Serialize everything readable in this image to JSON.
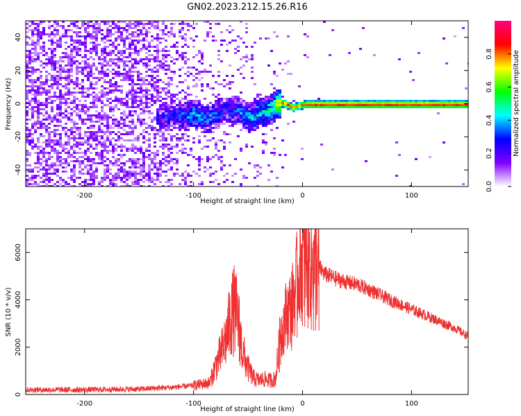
{
  "title": "GN02.2023.212.15.26.R16",
  "chart_data": [
    {
      "type": "heatmap",
      "xlabel": "Height of straight line (km)",
      "ylabel": "Frequency (Hz)",
      "xlim": [
        -254,
        152
      ],
      "ylim": [
        -50,
        50
      ],
      "x_ticks": [
        "-200",
        "-100",
        "0",
        "100"
      ],
      "y_ticks": [
        "-40",
        "-20",
        "0",
        "20",
        "40"
      ],
      "x_tick_values": [
        -200,
        -100,
        0,
        100
      ],
      "y_tick_values": [
        -40,
        -20,
        0,
        20,
        40
      ],
      "colorbar": {
        "label": "Normalized spectral amplitude",
        "range": [
          0,
          1
        ],
        "ticks": [
          "0.0",
          "0.2",
          "0.4",
          "0.6",
          "0.8"
        ],
        "tick_values": [
          0,
          0.2,
          0.4,
          0.6,
          0.8
        ],
        "colors": [
          "#ffffff",
          "#8000ff",
          "#0000ff",
          "#00ffff",
          "#00ff00",
          "#ffff00",
          "#ff0000",
          "#ff0080"
        ]
      },
      "signal_trace": [
        [
          -130,
          -8,
          0.35
        ],
        [
          -120,
          -6,
          0.4
        ],
        [
          -110,
          -7,
          0.45
        ],
        [
          -100,
          -6,
          0.5
        ],
        [
          -90,
          -9,
          0.45
        ],
        [
          -80,
          -6,
          0.45
        ],
        [
          -70,
          -3,
          0.4
        ],
        [
          -60,
          -4,
          0.45
        ],
        [
          -50,
          -8,
          0.5
        ],
        [
          -40,
          -5,
          0.55
        ],
        [
          -30,
          -3,
          0.6
        ],
        [
          -25,
          0,
          0.8
        ],
        [
          -20,
          1,
          0.85
        ],
        [
          -15,
          0,
          0.9
        ],
        [
          -10,
          -2,
          0.85
        ],
        [
          -5,
          -1,
          0.8
        ],
        [
          0,
          0,
          0.85
        ],
        [
          10,
          0,
          0.9
        ],
        [
          50,
          0,
          0.9
        ],
        [
          100,
          0,
          0.9
        ],
        [
          152,
          0,
          0.9
        ]
      ]
    },
    {
      "type": "line",
      "xlabel": "Height of straight line (km)",
      "ylabel": "SNR (10 * v/v)",
      "xlim": [
        -254,
        152
      ],
      "ylim": [
        0,
        7000
      ],
      "x_ticks": [
        "-200",
        "-100",
        "0",
        "100"
      ],
      "y_ticks": [
        "0",
        "2000",
        "4000",
        "6000"
      ],
      "x_tick_values": [
        -200,
        -100,
        0,
        100
      ],
      "y_tick_values": [
        0,
        2000,
        4000,
        6000
      ],
      "color": "#ee3030",
      "envelope": {
        "x": [
          -254,
          -200,
          -150,
          -120,
          -100,
          -85,
          -80,
          -75,
          -70,
          -65,
          -62,
          -60,
          -58,
          -55,
          -50,
          -45,
          -40,
          -35,
          -30,
          -25,
          -20,
          -15,
          -10,
          -5,
          0,
          5,
          10,
          15,
          20,
          30,
          40,
          50,
          60,
          80,
          100,
          120,
          140,
          152
        ],
        "y": [
          200,
          200,
          230,
          300,
          380,
          500,
          1200,
          1700,
          2400,
          3400,
          3600,
          3200,
          2800,
          1800,
          1100,
          700,
          600,
          650,
          600,
          650,
          2500,
          3400,
          3700,
          4800,
          5800,
          5600,
          5400,
          5400,
          5100,
          4900,
          4750,
          4650,
          4450,
          4000,
          3600,
          3200,
          2800,
          2450
        ]
      },
      "spikes": [
        [
          -65,
          4700
        ],
        [
          -62,
          4200
        ],
        [
          -58,
          4000
        ],
        [
          -20,
          3200
        ],
        [
          -10,
          5200
        ],
        [
          -5,
          5700
        ],
        [
          0,
          6900
        ],
        [
          2,
          6500
        ],
        [
          5,
          6300
        ],
        [
          8,
          6600
        ],
        [
          10,
          6500
        ],
        [
          12,
          6600
        ],
        [
          15,
          6000
        ]
      ]
    }
  ]
}
